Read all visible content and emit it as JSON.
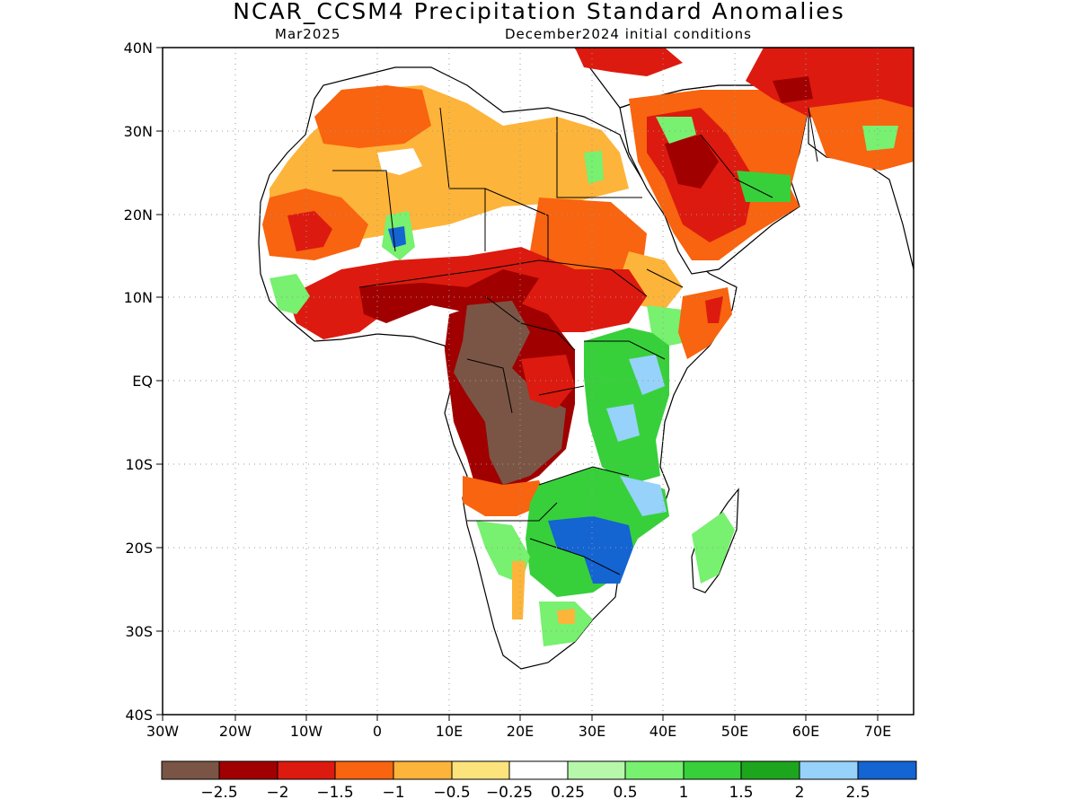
{
  "title": "NCAR_CCSM4 Precipitation Standard Anomalies",
  "subtitle_left": "Mar2025",
  "subtitle_right": "December2024 initial conditions",
  "y_ticks": [
    "40N",
    "30N",
    "20N",
    "10N",
    "EQ",
    "10S",
    "20S",
    "30S",
    "40S"
  ],
  "x_ticks": [
    "30W",
    "20W",
    "10W",
    "0",
    "10E",
    "20E",
    "30E",
    "40E",
    "50E",
    "60E",
    "70E"
  ],
  "colorbar": {
    "colors": [
      "#7a5545",
      "#a00000",
      "#dd1a0f",
      "#f8640f",
      "#fdb43a",
      "#fde37c",
      "#ffffff",
      "#b6f7aa",
      "#78f070",
      "#37d03b",
      "#1ea51e",
      "#96d2fa",
      "#1464d2"
    ],
    "labels": [
      "−2.5",
      "−2",
      "−1.5",
      "−1",
      "−0.5",
      "−0.25",
      "0.25",
      "0.5",
      "1",
      "1.5",
      "2",
      "2.5"
    ]
  }
}
